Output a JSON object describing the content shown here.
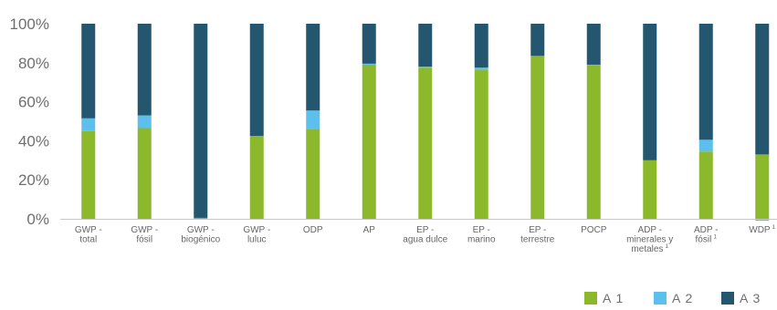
{
  "chart_data": {
    "type": "bar",
    "stacked": true,
    "ylim": [
      0,
      100
    ],
    "yticks": [
      "0%",
      "20%",
      "40%",
      "60%",
      "80%",
      "100%"
    ],
    "categories": [
      {
        "lines": [
          "GWP -",
          "total"
        ]
      },
      {
        "lines": [
          "GWP -",
          "fósil"
        ]
      },
      {
        "lines": [
          "GWP -",
          "biogénico"
        ]
      },
      {
        "lines": [
          "GWP -",
          "luluc"
        ]
      },
      {
        "lines": [
          "ODP"
        ]
      },
      {
        "lines": [
          "AP"
        ]
      },
      {
        "lines": [
          "EP -",
          "agua dulce"
        ]
      },
      {
        "lines": [
          "EP -",
          "marino"
        ]
      },
      {
        "lines": [
          "EP -",
          "terrestre"
        ]
      },
      {
        "lines": [
          "POCP"
        ]
      },
      {
        "lines": [
          "ADP -",
          "minerales y",
          "metales"
        ],
        "superscript": "1"
      },
      {
        "lines": [
          "ADP -",
          "fósil"
        ],
        "superscript": "1"
      },
      {
        "lines": [
          "WDP"
        ],
        "superscript": "1"
      }
    ],
    "series": [
      {
        "name": "A 1",
        "color": "#8cb92b",
        "values": [
          45,
          46.5,
          0.5,
          42.5,
          46,
          79,
          77.5,
          76.5,
          83.5,
          78.5,
          30,
          34.5,
          33
        ]
      },
      {
        "name": "A 2",
        "color": "#5dbfeb",
        "values": [
          6.5,
          6.5,
          0,
          0,
          9.5,
          0.5,
          0.5,
          1,
          0,
          0.5,
          0,
          6,
          -1
        ]
      },
      {
        "name": "A 3",
        "color": "#25566f",
        "values": [
          48.5,
          47,
          99.5,
          57.5,
          44.5,
          20.5,
          22,
          22.5,
          16.5,
          21,
          70,
          59.5,
          67
        ]
      }
    ],
    "legend": "bottom-right",
    "grid": false
  }
}
